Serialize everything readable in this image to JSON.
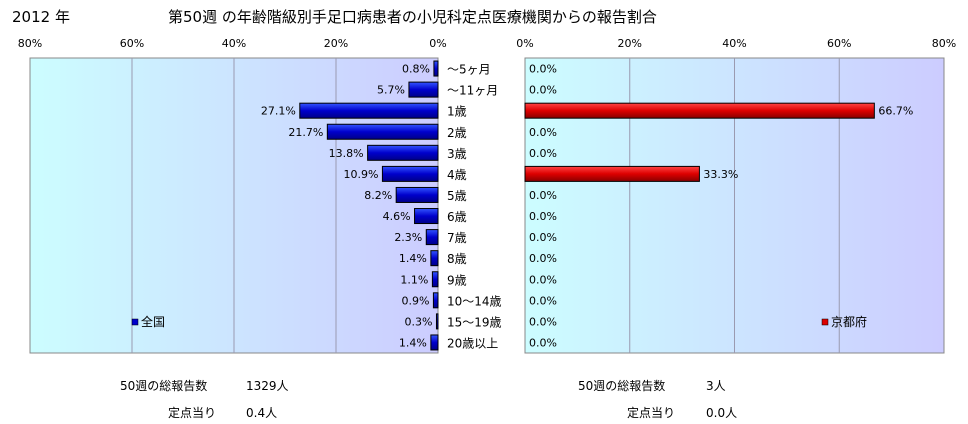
{
  "header": {
    "year": "2012 年",
    "title": "第50週 の年齢階級別手足口病患者の小児科定点医療機関からの報告割合"
  },
  "chart_data": [
    {
      "type": "bar",
      "orientation": "horizontal",
      "direction": "leftward",
      "categories": [
        "～5ヶ月",
        "～11ヶ月",
        "1歳",
        "2歳",
        "3歳",
        "4歳",
        "5歳",
        "6歳",
        "7歳",
        "8歳",
        "9歳",
        "10～14歳",
        "15～19歳",
        "20歳以上"
      ],
      "series": [
        {
          "name": "全国",
          "color": "#0000cc",
          "values": [
            0.8,
            5.7,
            27.1,
            21.7,
            13.8,
            10.9,
            8.2,
            4.6,
            2.3,
            1.4,
            1.1,
            0.9,
            0.3,
            1.4
          ],
          "labels": [
            "0.8%",
            "5.7%",
            "27.1%",
            "21.7%",
            "13.8%",
            "10.9%",
            "8.2%",
            "4.6%",
            "2.3%",
            "1.4%",
            "1.1%",
            "0.9%",
            "0.3%",
            "1.4%"
          ]
        }
      ],
      "xlim": [
        0,
        80
      ],
      "tick_labels": [
        "80%",
        "60%",
        "40%",
        "20%",
        "0%"
      ],
      "grid": true,
      "legend": "bottom-left",
      "plot_background": "#ccfdff-to-ccccff"
    },
    {
      "type": "bar",
      "orientation": "horizontal",
      "direction": "rightward",
      "categories": [
        "～5ヶ月",
        "～11ヶ月",
        "1歳",
        "2歳",
        "3歳",
        "4歳",
        "5歳",
        "6歳",
        "7歳",
        "8歳",
        "9歳",
        "10～14歳",
        "15～19歳",
        "20歳以上"
      ],
      "series": [
        {
          "name": "京都府",
          "color": "#dd0000",
          "values": [
            0.0,
            0.0,
            66.7,
            0.0,
            0.0,
            33.3,
            0.0,
            0.0,
            0.0,
            0.0,
            0.0,
            0.0,
            0.0,
            0.0
          ],
          "labels": [
            "0.0%",
            "0.0%",
            "66.7%",
            "0.0%",
            "0.0%",
            "33.3%",
            "0.0%",
            "0.0%",
            "0.0%",
            "0.0%",
            "0.0%",
            "0.0%",
            "0.0%",
            "0.0%"
          ]
        }
      ],
      "xlim": [
        0,
        80
      ],
      "tick_labels": [
        "0%",
        "20%",
        "40%",
        "60%",
        "80%"
      ],
      "grid": true,
      "legend": "bottom-right",
      "plot_background": "#ccfdff-to-ccccff"
    }
  ],
  "summary": {
    "left": {
      "total_label": "50週の総報告数",
      "total_value": "1329人",
      "per_label": "定点当り",
      "per_value": "0.4人"
    },
    "right": {
      "total_label": "50週の総報告数",
      "total_value": "3人",
      "per_label": "定点当り",
      "per_value": "0.0人"
    }
  }
}
